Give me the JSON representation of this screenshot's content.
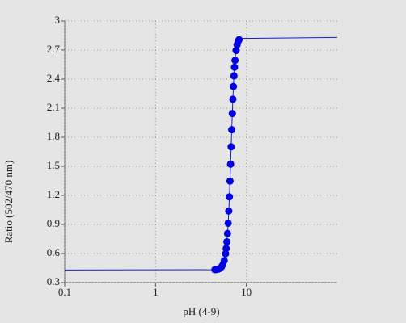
{
  "chart_data": {
    "type": "scatter",
    "x_label": "pH (4-9)",
    "y_label": "Ratio (502/470 nm)",
    "xscale": "log",
    "xlim": [
      0.1,
      100
    ],
    "ylim": [
      0.3,
      3
    ],
    "xticks": [
      0.1,
      1,
      10
    ],
    "yticks": [
      0.3,
      0.6,
      0.9,
      1.2,
      1.5,
      1.8,
      2.1,
      2.4,
      2.7,
      3
    ],
    "grid": true,
    "series": [
      {
        "style": "line",
        "color": "#1a1ad0",
        "x": [
          0.1,
          4.5,
          4.7,
          4.9,
          5.1,
          5.3,
          5.5,
          5.7,
          5.9,
          6.0,
          6.1,
          6.2,
          6.3,
          6.4,
          6.5,
          6.6,
          6.7,
          6.8,
          6.9,
          7.0,
          7.1,
          7.2,
          7.3,
          7.4,
          7.5,
          7.7,
          7.9,
          8.1,
          8.3,
          9,
          100
        ],
        "values": [
          0.43,
          0.433,
          0.435,
          0.439,
          0.446,
          0.46,
          0.484,
          0.526,
          0.598,
          0.653,
          0.721,
          0.807,
          0.913,
          1.039,
          1.185,
          1.347,
          1.522,
          1.702,
          1.878,
          2.045,
          2.193,
          2.324,
          2.434,
          2.523,
          2.594,
          2.695,
          2.754,
          2.788,
          2.807,
          2.82,
          2.83
        ]
      },
      {
        "style": "points",
        "color": "#0000e0",
        "x": [
          4.5,
          4.7,
          4.9,
          5.1,
          5.3,
          5.5,
          5.7,
          5.9,
          6.0,
          6.1,
          6.2,
          6.3,
          6.4,
          6.5,
          6.6,
          6.7,
          6.8,
          6.9,
          7.0,
          7.1,
          7.2,
          7.3,
          7.4,
          7.5,
          7.7,
          7.9,
          8.1,
          8.3
        ],
        "values": [
          0.433,
          0.435,
          0.439,
          0.446,
          0.46,
          0.484,
          0.526,
          0.598,
          0.653,
          0.721,
          0.807,
          0.913,
          1.039,
          1.185,
          1.347,
          1.522,
          1.702,
          1.878,
          2.045,
          2.193,
          2.324,
          2.434,
          2.523,
          2.594,
          2.695,
          2.754,
          2.788,
          2.807
        ]
      }
    ]
  }
}
